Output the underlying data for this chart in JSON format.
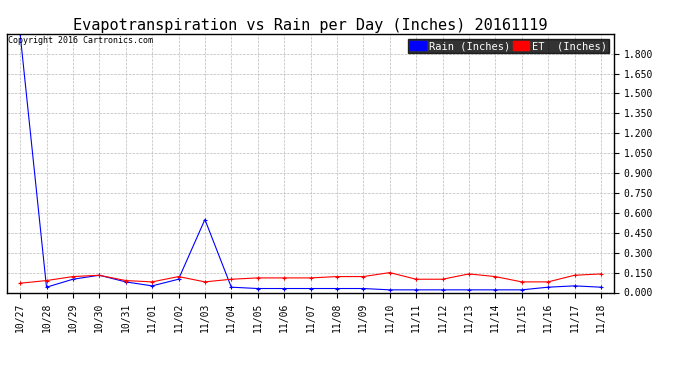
{
  "title": "Evapotranspiration vs Rain per Day (Inches) 20161119",
  "copyright": "Copyright 2016 Cartronics.com",
  "background_color": "#ffffff",
  "plot_bg_color": "#ffffff",
  "grid_color": "#bbbbbb",
  "ylim": [
    0.0,
    1.95
  ],
  "yticks": [
    0.0,
    0.15,
    0.3,
    0.45,
    0.6,
    0.75,
    0.9,
    1.05,
    1.2,
    1.35,
    1.5,
    1.65,
    1.8
  ],
  "x_labels": [
    "10/27",
    "10/28",
    "10/29",
    "10/30",
    "10/31",
    "11/01",
    "11/02",
    "11/03",
    "11/04",
    "11/05",
    "11/06",
    "11/07",
    "11/08",
    "11/09",
    "11/10",
    "11/11",
    "11/12",
    "11/13",
    "11/14",
    "11/15",
    "11/16",
    "11/17",
    "11/18"
  ],
  "rain_values": [
    1.95,
    0.04,
    0.1,
    0.13,
    0.08,
    0.05,
    0.1,
    0.55,
    0.04,
    0.03,
    0.03,
    0.03,
    0.03,
    0.03,
    0.02,
    0.02,
    0.02,
    0.02,
    0.02,
    0.02,
    0.04,
    0.05,
    0.04
  ],
  "et_values": [
    0.07,
    0.09,
    0.12,
    0.13,
    0.09,
    0.08,
    0.12,
    0.08,
    0.1,
    0.11,
    0.11,
    0.11,
    0.12,
    0.12,
    0.15,
    0.1,
    0.1,
    0.14,
    0.12,
    0.08,
    0.08,
    0.13,
    0.14
  ],
  "rain_color": "#0000ff",
  "et_color": "#ff0000",
  "rain_label": "Rain (Inches)",
  "title_fontsize": 11,
  "tick_fontsize": 7,
  "copyright_fontsize": 6,
  "legend_fontsize": 7.5
}
